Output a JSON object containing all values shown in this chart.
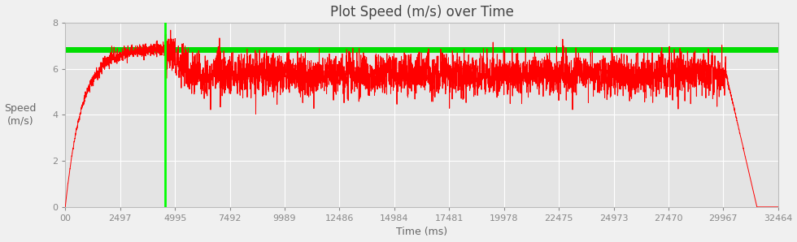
{
  "title": "Plot Speed (m/s) over Time",
  "xlabel": "Time (ms)",
  "ylabel": "Speed\n(m/s)",
  "xlim": [
    0,
    32464
  ],
  "ylim": [
    0,
    8
  ],
  "yticks": [
    0,
    2,
    4,
    6,
    8
  ],
  "xtick_labels": [
    "00",
    "2497",
    "4995",
    "7492",
    "9989",
    "12486",
    "14984",
    "17481",
    "19978",
    "22475",
    "24973",
    "27470",
    "29967",
    "32464"
  ],
  "xtick_values": [
    0,
    2497,
    4995,
    7492,
    9989,
    12486,
    14984,
    17481,
    19978,
    22475,
    24973,
    27470,
    29967,
    32464
  ],
  "line_color": "#ff0000",
  "vline_color": "#00ff00",
  "hline_color": "#00dd00",
  "vline_x": 4550,
  "hline_y": 6.85,
  "hline_thickness": 5,
  "bg_color": "#f0f0f0",
  "plot_bg_color": "#e4e4e4",
  "grid_color": "#ffffff",
  "title_fontsize": 12,
  "label_fontsize": 9,
  "tick_fontsize": 8,
  "total_time_ms": 32464,
  "max_speed": 6.85,
  "accel_end_ms": 4550,
  "run_end_ms": 30100,
  "decel_end_ms": 32200,
  "steady_base": 5.75,
  "steady_noise_amp": 0.55
}
